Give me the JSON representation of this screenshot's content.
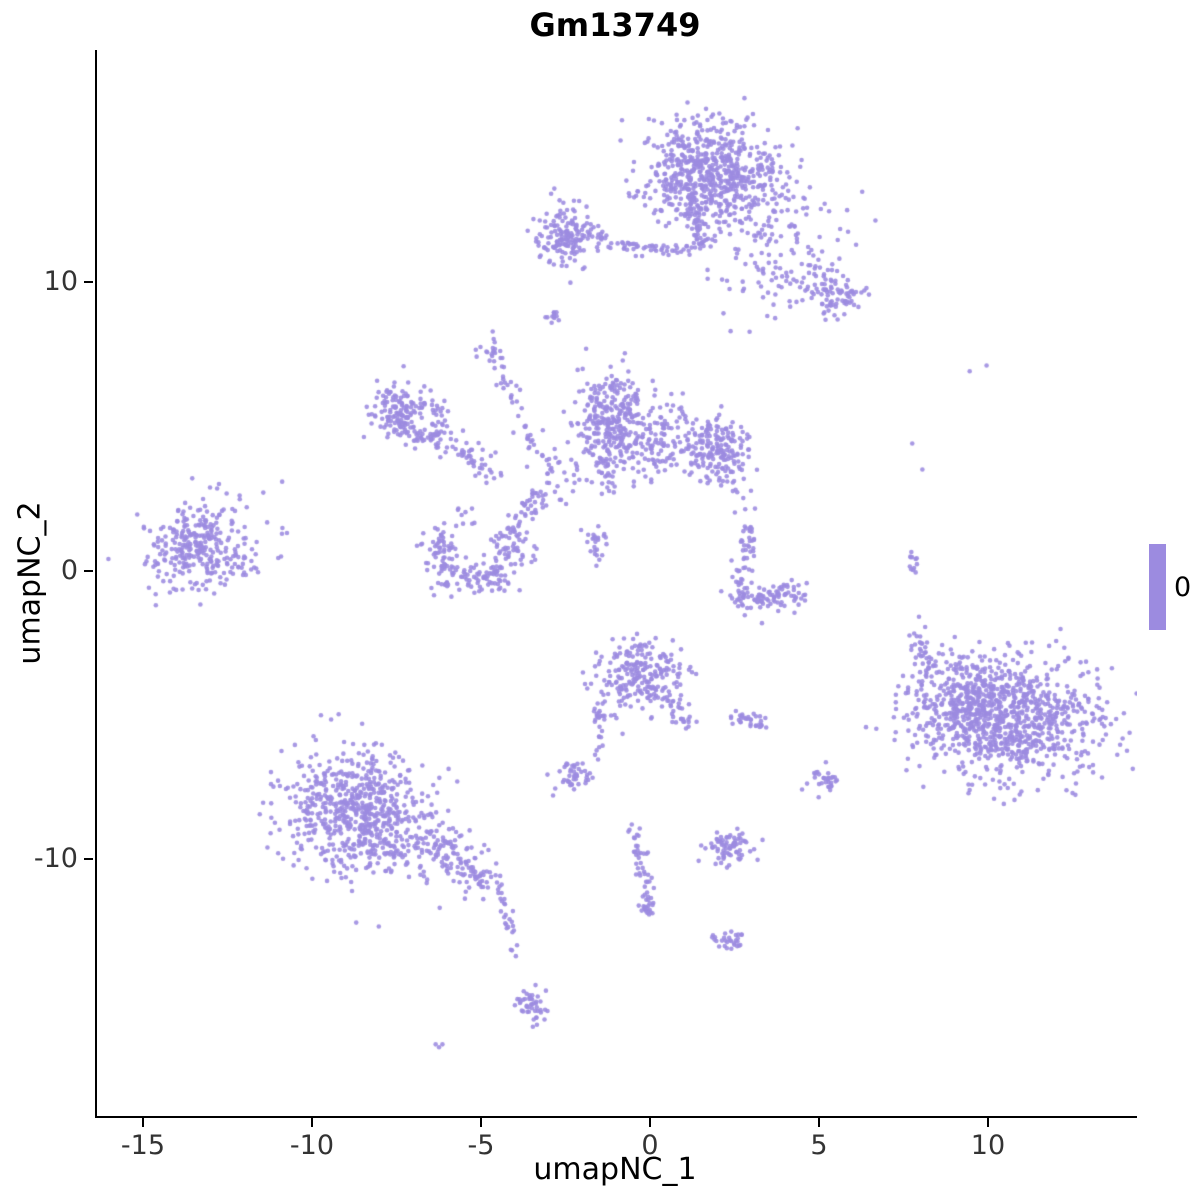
{
  "chart_data": {
    "type": "scatter",
    "title": "Gm13749",
    "xlabel": "umapNC_1",
    "ylabel": "umapNC_2",
    "xlim": [
      -16.42,
      14.35
    ],
    "ylim": [
      -18.88,
      18.02
    ],
    "x_ticks": [
      -15,
      -10,
      -5,
      0,
      5,
      10
    ],
    "y_ticks": [
      -10,
      0,
      10
    ],
    "grid": false,
    "background": "#ffffff",
    "point_color": "#9C8BE0",
    "point_radius": 2.3,
    "seed": 42,
    "legend": {
      "label": "0",
      "position": "right"
    },
    "clusters": [
      {
        "name": "top-main-core",
        "type": "blob",
        "cx": 1.6,
        "cy": 13.9,
        "sx": 1.0,
        "sy": 0.85,
        "n": 550
      },
      {
        "name": "top-main-fringe",
        "type": "blob",
        "cx": 2.2,
        "cy": 12.9,
        "sx": 1.3,
        "sy": 0.9,
        "n": 140
      },
      {
        "name": "top-neck",
        "type": "strand",
        "pts": [
          [
            1.2,
            12.6
          ],
          [
            1.4,
            11.3
          ]
        ],
        "w": 0.18,
        "n": 50
      },
      {
        "name": "top-right-spray",
        "type": "blob",
        "cx": 3.8,
        "cy": 10.9,
        "sx": 1.1,
        "sy": 1.1,
        "n": 140
      },
      {
        "name": "top-right-blob",
        "type": "blob",
        "cx": 5.5,
        "cy": 9.6,
        "sx": 0.4,
        "sy": 0.33,
        "n": 70
      },
      {
        "name": "topleft-blob",
        "type": "blob",
        "cx": -2.6,
        "cy": 11.6,
        "sx": 0.45,
        "sy": 0.55,
        "n": 150
      },
      {
        "name": "topleft-arm",
        "type": "strand",
        "pts": [
          [
            -2.0,
            11.6
          ],
          [
            -0.6,
            11.2
          ],
          [
            0.9,
            11.1
          ]
        ],
        "w": 0.13,
        "n": 60
      },
      {
        "name": "dot-upper",
        "type": "blob",
        "cx": -2.9,
        "cy": 8.8,
        "sx": 0.16,
        "sy": 0.1,
        "n": 12
      },
      {
        "name": "small-upper-blob",
        "type": "blob",
        "cx": -4.7,
        "cy": 7.5,
        "sx": 0.22,
        "sy": 0.28,
        "n": 22
      },
      {
        "name": "diag-strand",
        "type": "strand",
        "pts": [
          [
            -4.5,
            7.0
          ],
          [
            -4.0,
            5.6
          ],
          [
            -3.4,
            4.2
          ],
          [
            -3.0,
            3.2
          ]
        ],
        "w": 0.16,
        "n": 40
      },
      {
        "name": "ring-west-blob",
        "type": "blob",
        "cx": -7.5,
        "cy": 5.6,
        "sx": 0.4,
        "sy": 0.5,
        "n": 110
      },
      {
        "name": "ring-loop",
        "type": "ring",
        "cx": -6.8,
        "cy": 5.15,
        "r": 0.62,
        "w": 0.13,
        "n": 85
      },
      {
        "name": "ring-arm",
        "type": "strand",
        "pts": [
          [
            -6.3,
            4.6
          ],
          [
            -5.4,
            4.0
          ],
          [
            -4.6,
            3.5
          ]
        ],
        "w": 0.25,
        "n": 55
      },
      {
        "name": "center-core",
        "type": "blob",
        "cx": -1.2,
        "cy": 5.3,
        "sx": 0.55,
        "sy": 0.8,
        "n": 280
      },
      {
        "name": "center-east",
        "type": "blob",
        "cx": 0.3,
        "cy": 4.4,
        "sx": 0.8,
        "sy": 0.6,
        "n": 160
      },
      {
        "name": "center-east-blob",
        "type": "blob",
        "cx": 2.0,
        "cy": 4.2,
        "sx": 0.45,
        "sy": 0.55,
        "n": 150
      },
      {
        "name": "center-tail",
        "type": "strand",
        "pts": [
          [
            -1.5,
            3.9
          ],
          [
            -1.3,
            2.7
          ]
        ],
        "w": 0.12,
        "n": 25
      },
      {
        "name": "center-small-blob",
        "type": "blob",
        "cx": -1.6,
        "cy": 1.1,
        "sx": 0.18,
        "sy": 0.3,
        "n": 25
      },
      {
        "name": "cross-spray",
        "type": "blob",
        "cx": -2.8,
        "cy": 3.2,
        "sx": 0.5,
        "sy": 0.5,
        "n": 35
      },
      {
        "name": "east-strand",
        "type": "strand",
        "pts": [
          [
            2.2,
            3.4
          ],
          [
            2.8,
            2.0
          ]
        ],
        "w": 0.15,
        "n": 15
      },
      {
        "name": "farleft-core",
        "type": "blob",
        "cx": -13.5,
        "cy": 0.9,
        "sx": 0.75,
        "sy": 0.65,
        "n": 240
      },
      {
        "name": "farleft-halo",
        "type": "blob",
        "cx": -13.3,
        "cy": 0.9,
        "sx": 1.1,
        "sy": 0.95,
        "n": 60
      },
      {
        "name": "farleft-east-dots",
        "type": "blob",
        "cx": -11.9,
        "cy": 0.2,
        "sx": 0.3,
        "sy": 0.3,
        "n": 14
      },
      {
        "name": "farleft-stray",
        "type": "points",
        "pts": [
          [
            -11.5,
            2.7
          ],
          [
            -10.8,
            1.3
          ],
          [
            -12.2,
            2.6
          ]
        ]
      },
      {
        "name": "crescent",
        "type": "arc",
        "cx": -5.2,
        "cy": 0.8,
        "r": 1.15,
        "a0": 150,
        "a1": 395,
        "w": 0.3,
        "n": 210
      },
      {
        "name": "crescent-spray",
        "type": "strand",
        "pts": [
          [
            -4.0,
            1.6
          ],
          [
            -3.3,
            2.7
          ]
        ],
        "w": 0.22,
        "n": 30
      },
      {
        "name": "crescent-dots",
        "type": "blob",
        "cx": -5.7,
        "cy": 1.9,
        "sx": 0.25,
        "sy": 0.2,
        "n": 10
      },
      {
        "name": "hook-bottom",
        "type": "strand",
        "pts": [
          [
            2.6,
            -0.9
          ],
          [
            3.5,
            -1.0
          ],
          [
            4.4,
            -0.8
          ]
        ],
        "w": 0.28,
        "n": 100
      },
      {
        "name": "hook-arm",
        "type": "strand",
        "pts": [
          [
            2.6,
            -0.5
          ],
          [
            2.75,
            0.6
          ],
          [
            2.9,
            1.6
          ]
        ],
        "w": 0.14,
        "n": 45
      },
      {
        "name": "mid-bottom-core",
        "type": "blob",
        "cx": -0.4,
        "cy": -3.6,
        "sx": 0.65,
        "sy": 0.62,
        "n": 230
      },
      {
        "name": "mid-bottom-tail-e",
        "type": "strand",
        "pts": [
          [
            0.4,
            -4.4
          ],
          [
            1.0,
            -5.3
          ]
        ],
        "w": 0.18,
        "n": 30
      },
      {
        "name": "mid-bottom-tail-w",
        "type": "strand",
        "pts": [
          [
            -1.5,
            -4.3
          ],
          [
            -1.6,
            -6.2
          ]
        ],
        "w": 0.12,
        "n": 28
      },
      {
        "name": "small-blob-sw",
        "type": "blob",
        "cx": -2.3,
        "cy": -7.1,
        "sx": 0.32,
        "sy": 0.3,
        "n": 45
      },
      {
        "name": "pair-blob-a",
        "type": "blob",
        "cx": 2.7,
        "cy": -5.1,
        "sx": 0.18,
        "sy": 0.14,
        "n": 18
      },
      {
        "name": "pair-blob-b",
        "type": "blob",
        "cx": 3.2,
        "cy": -5.3,
        "sx": 0.15,
        "sy": 0.12,
        "n": 14
      },
      {
        "name": "bigleft-a",
        "type": "blob",
        "cx": -9.0,
        "cy": -7.9,
        "sx": 1.05,
        "sy": 1.0,
        "n": 400
      },
      {
        "name": "bigleft-b",
        "type": "blob",
        "cx": -8.2,
        "cy": -9.0,
        "sx": 1.0,
        "sy": 0.9,
        "n": 300
      },
      {
        "name": "bigleft-tail",
        "type": "strand",
        "pts": [
          [
            -6.9,
            -9.2
          ],
          [
            -5.6,
            -10.1
          ],
          [
            -4.6,
            -10.9
          ]
        ],
        "w": 0.32,
        "n": 130
      },
      {
        "name": "thin-trail",
        "type": "strand",
        "pts": [
          [
            -4.4,
            -11.3
          ],
          [
            -4.2,
            -12.4
          ],
          [
            -3.9,
            -13.6
          ]
        ],
        "w": 0.1,
        "n": 22
      },
      {
        "name": "trail-end-blob",
        "type": "blob",
        "cx": -3.6,
        "cy": -15.0,
        "sx": 0.22,
        "sy": 0.32,
        "n": 45
      },
      {
        "name": "tiny-dash",
        "type": "points",
        "pts": [
          [
            -6.4,
            -16.4
          ],
          [
            -6.3,
            -16.5
          ],
          [
            -6.2,
            -16.4
          ]
        ]
      },
      {
        "name": "bigright-core",
        "type": "blob",
        "cx": 10.7,
        "cy": -5.1,
        "sx": 1.35,
        "sy": 1.05,
        "n": 850
      },
      {
        "name": "bigright-west",
        "type": "blob",
        "cx": 9.2,
        "cy": -4.3,
        "sx": 0.7,
        "sy": 0.8,
        "n": 220
      },
      {
        "name": "bigright-northarm",
        "type": "strand",
        "pts": [
          [
            7.7,
            -2.2
          ],
          [
            8.3,
            -3.6
          ]
        ],
        "w": 0.2,
        "n": 35
      },
      {
        "name": "right-stray-strand",
        "type": "strand",
        "pts": [
          [
            7.75,
            0.6
          ],
          [
            7.8,
            -0.5
          ]
        ],
        "w": 0.07,
        "n": 12
      },
      {
        "name": "right-stray-dots",
        "type": "points",
        "pts": [
          [
            9.4,
            6.9
          ],
          [
            9.9,
            7.1
          ],
          [
            7.7,
            4.4
          ],
          [
            8.0,
            3.5
          ],
          [
            7.9,
            -1.6
          ]
        ]
      },
      {
        "name": "small-blob-se",
        "type": "blob",
        "cx": 5.1,
        "cy": -7.2,
        "sx": 0.22,
        "sy": 0.27,
        "n": 32
      },
      {
        "name": "south-strand",
        "type": "strand",
        "pts": [
          [
            -0.7,
            -8.7
          ],
          [
            -0.4,
            -9.7
          ],
          [
            -0.15,
            -10.7
          ],
          [
            -0.1,
            -11.5
          ]
        ],
        "w": 0.12,
        "n": 45
      },
      {
        "name": "south-strand-end",
        "type": "blob",
        "cx": -0.1,
        "cy": -11.7,
        "sx": 0.16,
        "sy": 0.15,
        "n": 18
      },
      {
        "name": "south-small-cluster",
        "type": "blob",
        "cx": 2.3,
        "cy": -9.6,
        "sx": 0.36,
        "sy": 0.3,
        "n": 75
      },
      {
        "name": "south-small-blob",
        "type": "blob",
        "cx": 2.3,
        "cy": -12.8,
        "sx": 0.26,
        "sy": 0.16,
        "n": 30
      }
    ]
  }
}
